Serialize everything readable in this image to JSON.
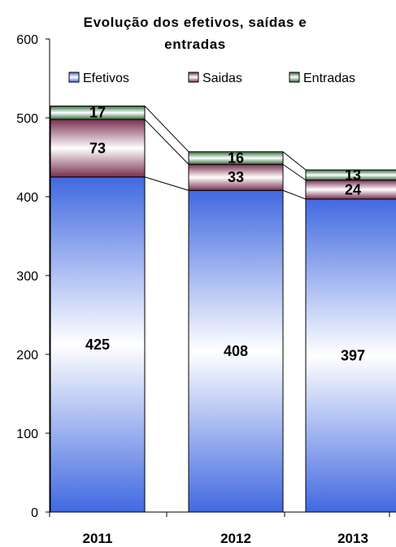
{
  "chart_data": {
    "type": "bar",
    "stacked": true,
    "title": "Evolução dos efetivos, saídas e entradas",
    "categories": [
      "2011",
      "2012",
      "2013"
    ],
    "series": [
      {
        "name": "Efetivos",
        "values": [
          425,
          408,
          397
        ],
        "color": "#4169e1"
      },
      {
        "name": "Saidas",
        "values": [
          73,
          33,
          24
        ],
        "color": "#8b3a5a"
      },
      {
        "name": "Entradas",
        "values": [
          17,
          16,
          13
        ],
        "color": "#2e6b3a"
      }
    ],
    "ylim": [
      0,
      600
    ],
    "yticks": [
      0,
      100,
      200,
      300,
      400,
      500,
      600
    ],
    "xlabel": "",
    "ylabel": "",
    "grid": false,
    "legend": "top",
    "series_lines": true
  }
}
